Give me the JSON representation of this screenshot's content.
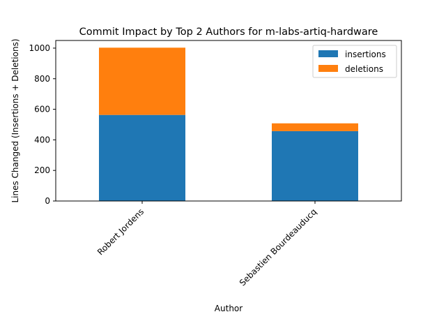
{
  "chart_data": {
    "type": "bar",
    "stacked": true,
    "title": "Commit Impact by Top 2 Authors for m-labs-artiq-hardware",
    "xlabel": "Author",
    "ylabel": "Lines Changed (Insertions + Deletions)",
    "categories": [
      "Robert Jordens",
      "Sebastien Bourdeauducq"
    ],
    "series": [
      {
        "name": "insertions",
        "values": [
          563,
          457
        ],
        "color": "#1f77b4"
      },
      {
        "name": "deletions",
        "values": [
          440,
          51
        ],
        "color": "#ff7f0e"
      }
    ],
    "ylim": [
      0,
      1050
    ],
    "yticks": [
      0,
      200,
      400,
      600,
      800,
      1000
    ],
    "grid": false,
    "legend_position": "top-right"
  }
}
